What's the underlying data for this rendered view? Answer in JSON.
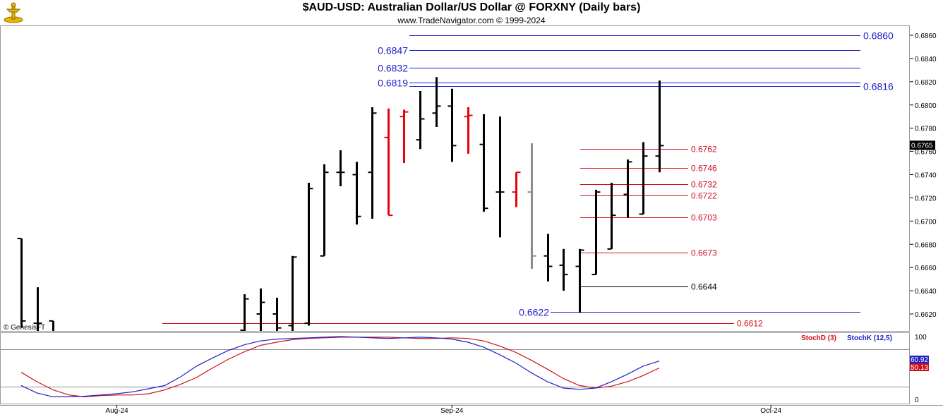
{
  "header": {
    "title": "$AUD-USD:  Australian Dollar/US Dollar @ FORXNY  (Daily bars)",
    "subtitle": "www.TradeNavigator.com © 1999-2024"
  },
  "watermark": "© GenesisFT",
  "colors": {
    "up_bar": "#000000",
    "down_bar": "#e8000b",
    "neutral_bar": "#8c8c8c",
    "blue_level": "#1f1fc8",
    "red_level": "#d0101a",
    "stoch_k": "#1f1fc8",
    "stoch_d": "#d0101a"
  },
  "chart_data": [
    {
      "type": "ohlc",
      "name": "price",
      "ylim": [
        0.661,
        0.687
      ],
      "y_ticks": [
        "0.6620",
        "0.6640",
        "0.6660",
        "0.6680",
        "0.6700",
        "0.6720",
        "0.6740",
        "0.6760",
        "0.6780",
        "0.6800",
        "0.6820",
        "0.6840",
        "0.6860"
      ],
      "last_price_label": "0.6765",
      "x_ticks": [
        {
          "label": "Aug-24",
          "bar": 6
        },
        {
          "label": "Sep-24",
          "bar": 27
        },
        {
          "label": "Oct-24",
          "bar": 47
        }
      ],
      "bars": [
        {
          "o": 0.6685,
          "h": 0.6685,
          "l": 0.6608,
          "c": 0.6614,
          "color": "up"
        },
        {
          "o": 0.6612,
          "h": 0.6643,
          "l": 0.66,
          "c": 0.6612,
          "color": "up"
        },
        {
          "o": 0.6614,
          "h": 0.6614,
          "l": 0.6595,
          "c": 0.6604,
          "color": "up"
        },
        {
          "o": null,
          "h": null,
          "l": null,
          "c": null,
          "color": "up"
        },
        {
          "o": null,
          "h": null,
          "l": null,
          "c": null,
          "color": "up"
        },
        {
          "o": null,
          "h": null,
          "l": null,
          "c": null,
          "color": "up"
        },
        {
          "o": null,
          "h": null,
          "l": null,
          "c": null,
          "color": "up"
        },
        {
          "o": null,
          "h": null,
          "l": null,
          "c": null,
          "color": "up"
        },
        {
          "o": null,
          "h": null,
          "l": null,
          "c": null,
          "color": "up"
        },
        {
          "o": null,
          "h": null,
          "l": null,
          "c": null,
          "color": "up"
        },
        {
          "o": null,
          "h": null,
          "l": null,
          "c": null,
          "color": "up"
        },
        {
          "o": null,
          "h": null,
          "l": null,
          "c": null,
          "color": "up"
        },
        {
          "o": null,
          "h": null,
          "l": null,
          "c": null,
          "color": "up"
        },
        {
          "o": null,
          "h": null,
          "l": null,
          "c": null,
          "color": "up"
        },
        {
          "o": 0.6606,
          "h": 0.6637,
          "l": 0.6603,
          "c": 0.6633,
          "color": "up"
        },
        {
          "o": 0.662,
          "h": 0.6642,
          "l": 0.6598,
          "c": 0.663,
          "color": "up"
        },
        {
          "o": 0.662,
          "h": 0.6634,
          "l": 0.6602,
          "c": 0.6608,
          "color": "up"
        },
        {
          "o": 0.661,
          "h": 0.667,
          "l": 0.6602,
          "c": 0.6669,
          "color": "up"
        },
        {
          "o": 0.6612,
          "h": 0.6733,
          "l": 0.661,
          "c": 0.6728,
          "color": "up"
        },
        {
          "o": 0.667,
          "h": 0.6749,
          "l": 0.667,
          "c": 0.6742,
          "color": "up"
        },
        {
          "o": 0.6742,
          "h": 0.6761,
          "l": 0.673,
          "c": 0.6742,
          "color": "up"
        },
        {
          "o": 0.674,
          "h": 0.6751,
          "l": 0.6697,
          "c": 0.6704,
          "color": "up"
        },
        {
          "o": 0.6742,
          "h": 0.6798,
          "l": 0.6702,
          "c": 0.6793,
          "color": "up"
        },
        {
          "o": 0.6772,
          "h": 0.6797,
          "l": 0.6705,
          "c": 0.6705,
          "color": "down"
        },
        {
          "o": 0.679,
          "h": 0.6796,
          "l": 0.675,
          "c": 0.6794,
          "color": "down"
        },
        {
          "o": 0.677,
          "h": 0.6812,
          "l": 0.6762,
          "c": 0.6788,
          "color": "up"
        },
        {
          "o": 0.6793,
          "h": 0.6824,
          "l": 0.6781,
          "c": 0.6799,
          "color": "up"
        },
        {
          "o": 0.6799,
          "h": 0.6814,
          "l": 0.6751,
          "c": 0.6765,
          "color": "up"
        },
        {
          "o": 0.679,
          "h": 0.6798,
          "l": 0.6758,
          "c": 0.6791,
          "color": "down"
        },
        {
          "o": 0.6766,
          "h": 0.6792,
          "l": 0.6708,
          "c": 0.6711,
          "color": "up"
        },
        {
          "o": 0.6725,
          "h": 0.679,
          "l": 0.6686,
          "c": 0.6725,
          "color": "up"
        },
        {
          "o": 0.6725,
          "h": 0.6742,
          "l": 0.6712,
          "c": 0.6742,
          "color": "down"
        },
        {
          "o": 0.6725,
          "h": 0.6767,
          "l": 0.6659,
          "c": 0.667,
          "color": "neutral"
        },
        {
          "o": 0.667,
          "h": 0.6689,
          "l": 0.6648,
          "c": 0.6661,
          "color": "up"
        },
        {
          "o": 0.6662,
          "h": 0.6676,
          "l": 0.664,
          "c": 0.6654,
          "color": "up"
        },
        {
          "o": 0.6661,
          "h": 0.6676,
          "l": 0.6621,
          "c": 0.6675,
          "color": "up"
        },
        {
          "o": 0.6654,
          "h": 0.6727,
          "l": 0.6654,
          "c": 0.6725,
          "color": "up"
        },
        {
          "o": 0.6676,
          "h": 0.6733,
          "l": 0.6676,
          "c": 0.6705,
          "color": "up"
        },
        {
          "o": 0.6723,
          "h": 0.6753,
          "l": 0.6703,
          "c": 0.6751,
          "color": "up"
        },
        {
          "o": 0.6706,
          "h": 0.6768,
          "l": 0.6706,
          "c": 0.6756,
          "color": "up"
        },
        {
          "o": 0.6756,
          "h": 0.6821,
          "l": 0.6742,
          "c": 0.6765,
          "color": "up"
        }
      ],
      "levels": [
        {
          "value": 0.686,
          "label": "0.6860",
          "color": "blue",
          "label_side": "right"
        },
        {
          "value": 0.6847,
          "label": "0.6847",
          "color": "blue",
          "label_side": "left"
        },
        {
          "value": 0.6832,
          "label": "0.6832",
          "color": "blue",
          "label_side": "left"
        },
        {
          "value": 0.6819,
          "label": "0.6819",
          "color": "blue",
          "label_side": "left"
        },
        {
          "value": 0.6816,
          "label": "0.6816",
          "color": "blue",
          "label_side": "right"
        },
        {
          "value": 0.6762,
          "label": "0.6762",
          "color": "red",
          "label_side": "right"
        },
        {
          "value": 0.6746,
          "label": "0.6746",
          "color": "red",
          "label_side": "right"
        },
        {
          "value": 0.6732,
          "label": "0.6732",
          "color": "red",
          "label_side": "right"
        },
        {
          "value": 0.6722,
          "label": "0.6722",
          "color": "red",
          "label_side": "right"
        },
        {
          "value": 0.6703,
          "label": "0.6703",
          "color": "red",
          "label_side": "right"
        },
        {
          "value": 0.6673,
          "label": "0.6673",
          "color": "red",
          "label_side": "right"
        },
        {
          "value": 0.6644,
          "label": "0.6644",
          "color": "black",
          "label_side": "right"
        },
        {
          "value": 0.6622,
          "label": "0.6622",
          "color": "blue",
          "label_side": "left"
        },
        {
          "value": 0.6612,
          "label": "0.6612",
          "color": "red",
          "label_side": "right"
        }
      ]
    },
    {
      "type": "line",
      "name": "stochastics",
      "ylim": [
        0,
        100
      ],
      "y_ticks": [
        "0",
        "100"
      ],
      "ref_lines": [
        20,
        80
      ],
      "legend": [
        {
          "label": "StochD (3)",
          "color": "red"
        },
        {
          "label": "StochK (12,5)",
          "color": "blue"
        }
      ],
      "last_values": [
        {
          "label": "60.92",
          "color": "blue",
          "value": 60.92
        },
        {
          "label": "50.13",
          "color": "red",
          "value": 50.13
        }
      ],
      "series": [
        {
          "key": "stoch_d",
          "values": [
            43,
            28,
            15,
            7,
            4,
            6,
            7,
            7,
            9,
            15,
            24,
            35,
            50,
            64,
            76,
            86,
            91,
            95,
            97,
            98,
            99,
            99,
            99,
            99,
            98,
            97,
            97,
            98,
            97,
            93,
            85,
            75,
            62,
            48,
            33,
            22,
            18,
            21,
            28,
            38,
            50
          ]
        },
        {
          "key": "stoch_k",
          "values": [
            22,
            10,
            4,
            4,
            5,
            7,
            9,
            12,
            17,
            22,
            36,
            53,
            66,
            78,
            87,
            93,
            96,
            97,
            98,
            99,
            100,
            99,
            98,
            97,
            98,
            99,
            98,
            96,
            91,
            83,
            71,
            58,
            42,
            28,
            18,
            16,
            18,
            28,
            40,
            53,
            61
          ]
        }
      ]
    }
  ]
}
